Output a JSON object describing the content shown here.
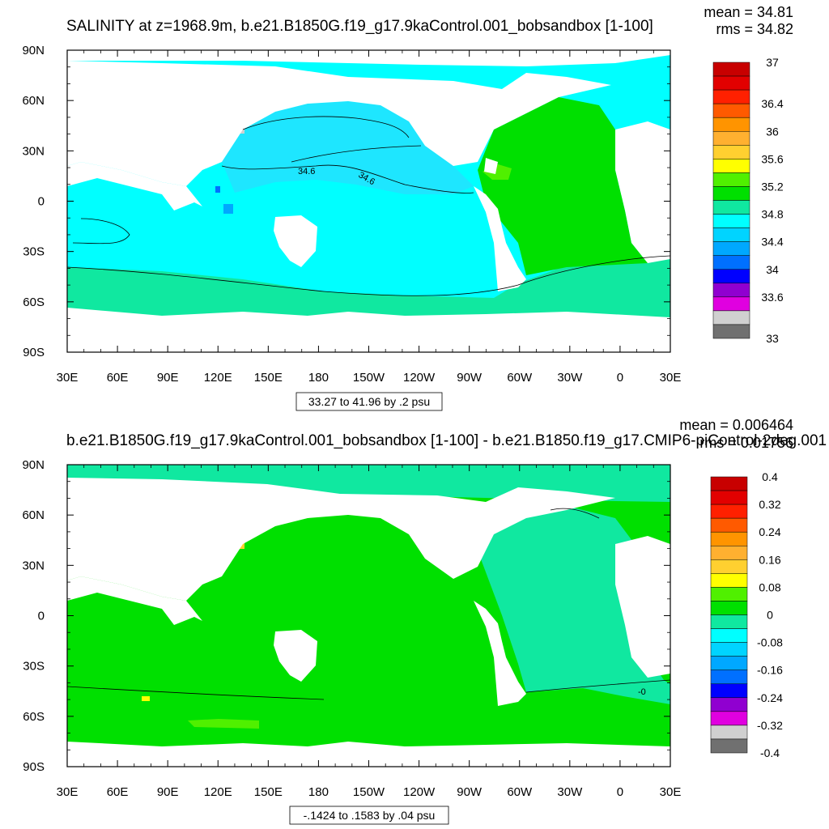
{
  "chart_data": [
    {
      "type": "map-contour",
      "title": "SALINITY at z=1968.9m, b.e21.B1850G.f19_g17.9kaControl.001_bobsandbox [1-100]",
      "mean_label": "mean = 34.81",
      "rms_label": "rms = 34.82",
      "info": "33.27 to 41.96 by .2 psu",
      "x_ticks": [
        "30E",
        "60E",
        "90E",
        "120E",
        "150E",
        "180",
        "150W",
        "120W",
        "90W",
        "60W",
        "30W",
        "0",
        "30E"
      ],
      "y_ticks": [
        "90N",
        "60N",
        "30N",
        "0",
        "30S",
        "60S",
        "90S"
      ],
      "x_range": [
        30,
        390
      ],
      "y_range": [
        -90,
        90
      ],
      "colorbar": {
        "colors": [
          "#c80000",
          "#e20000",
          "#ff2000",
          "#ff5a00",
          "#ff9400",
          "#ffb030",
          "#ffd030",
          "#ffff00",
          "#50f000",
          "#00e000",
          "#10e8a0",
          "#00ffff",
          "#00d4ff",
          "#00a8ff",
          "#0070ff",
          "#0000ff",
          "#9000d0",
          "#e000e0",
          "#d0d0d0",
          "#707070"
        ],
        "labels": [
          "37",
          "36.4",
          "36",
          "35.6",
          "35.2",
          "34.8",
          "34.4",
          "34",
          "33.6",
          "33"
        ],
        "label_boundaries": [
          0,
          3,
          5,
          7,
          9,
          11,
          13,
          15,
          17,
          20
        ]
      },
      "contour_labels": [
        "34.6",
        "34.6"
      ]
    },
    {
      "type": "map-contour",
      "title": "b.e21.B1850G.f19_g17.9kaControl.001_bobsandbox [1-100] - b.e21.B1850.f19_g17.CMIP6-piControl-2deg.001 [1-100]",
      "mean_label": "mean = 0.006464",
      "rms_label": "rms = 0.01756",
      "info": "-.1424 to .1583 by .04 psu",
      "x_ticks": [
        "30E",
        "60E",
        "90E",
        "120E",
        "150E",
        "180",
        "150W",
        "120W",
        "90W",
        "60W",
        "30W",
        "0",
        "30E"
      ],
      "y_ticks": [
        "90N",
        "60N",
        "30N",
        "0",
        "30S",
        "60S",
        "90S"
      ],
      "x_range": [
        30,
        390
      ],
      "y_range": [
        -90,
        90
      ],
      "colorbar": {
        "colors": [
          "#c80000",
          "#e20000",
          "#ff2000",
          "#ff5a00",
          "#ff9400",
          "#ffb030",
          "#ffd030",
          "#ffff00",
          "#50f000",
          "#00e000",
          "#10e8a0",
          "#00ffff",
          "#00d4ff",
          "#00a8ff",
          "#0070ff",
          "#0000ff",
          "#9000d0",
          "#e000e0",
          "#d0d0d0",
          "#707070"
        ],
        "labels": [
          "0.4",
          "0.32",
          "0.24",
          "0.16",
          "0.08",
          "0",
          "-0.08",
          "-0.16",
          "-0.24",
          "-0.32",
          "-0.4"
        ],
        "label_boundaries": [
          0,
          2,
          4,
          6,
          8,
          10,
          12,
          14,
          16,
          18,
          20
        ]
      },
      "contour_labels": [
        "-0"
      ]
    }
  ]
}
